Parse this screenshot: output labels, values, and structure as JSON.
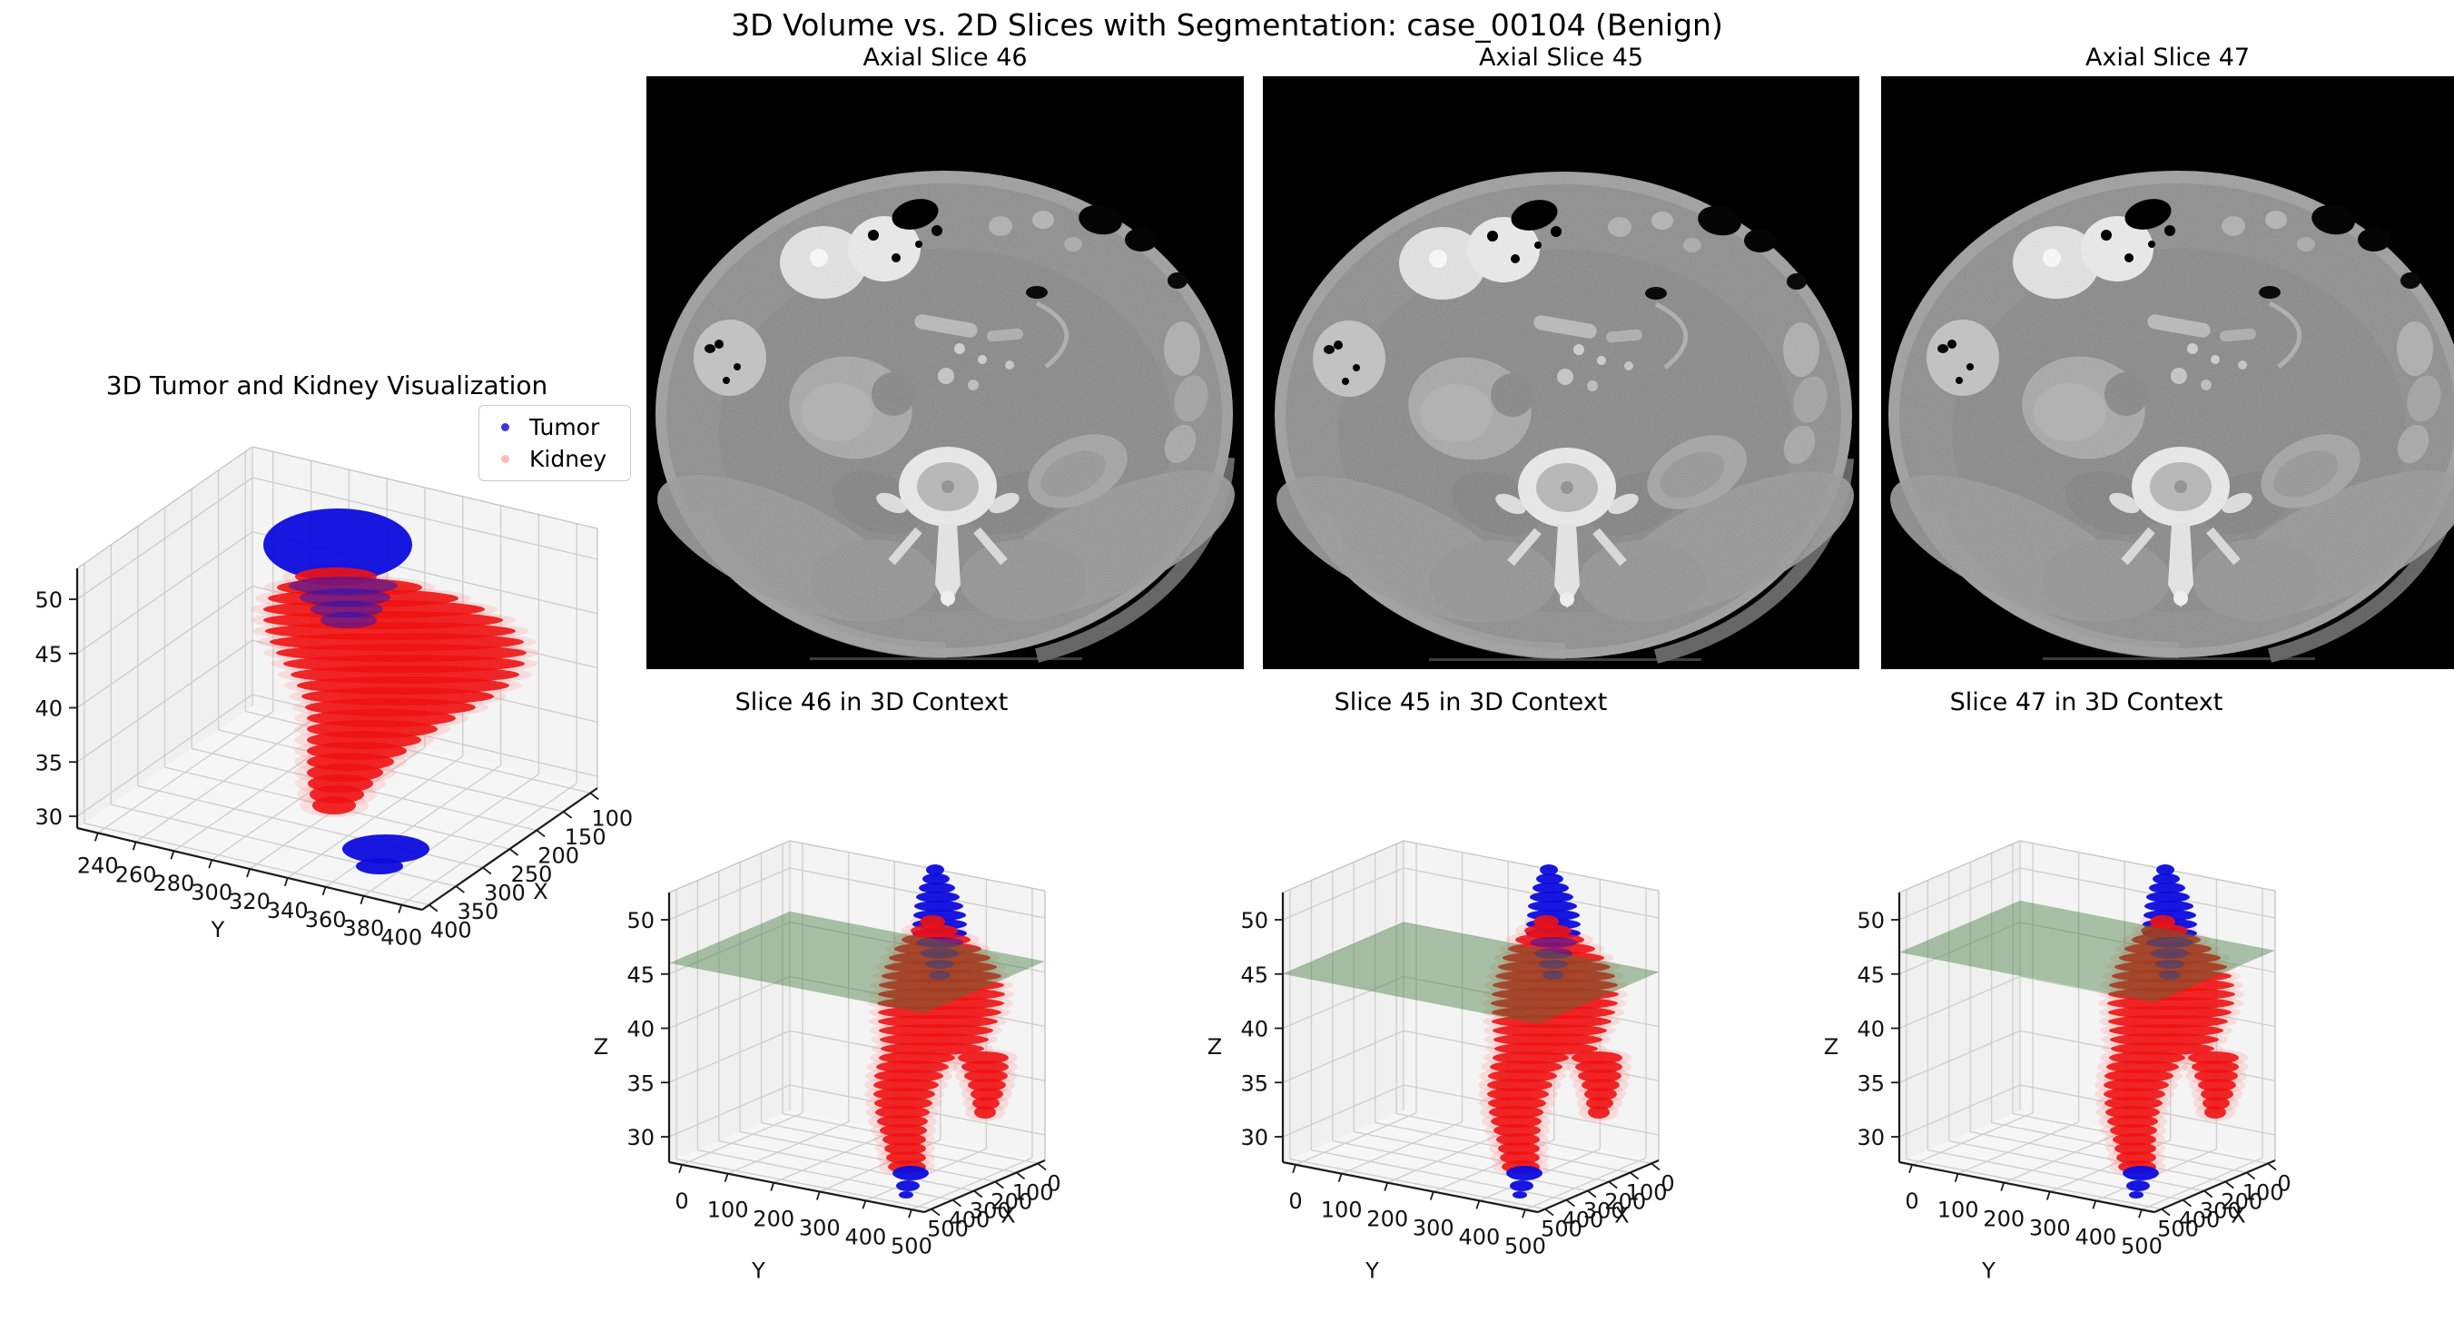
{
  "figure": {
    "suptitle": "3D Volume vs. 2D Slices with Segmentation: case_00104 (Benign)"
  },
  "main3d": {
    "title": "3D Tumor and Kidney Visualization",
    "legend": [
      {
        "label": "Tumor",
        "color": "#3a3ad9"
      },
      {
        "label": "Kidney",
        "color": "#ffb9b9"
      }
    ],
    "xlabel": "X",
    "ylabel": "Y",
    "zlabel": "",
    "x_ticks": [
      "100",
      "150",
      "200",
      "250",
      "300",
      "350",
      "400"
    ],
    "y_ticks": [
      "240",
      "260",
      "280",
      "300",
      "320",
      "340",
      "360",
      "380",
      "400"
    ],
    "z_ticks": [
      "50",
      "45",
      "40",
      "35",
      "30"
    ]
  },
  "axial": {
    "titles": [
      "Axial Slice 46",
      "Axial Slice 45",
      "Axial Slice 47"
    ]
  },
  "context": {
    "titles": [
      "Slice 46 in 3D Context",
      "Slice 45 in 3D Context",
      "Slice 47 in 3D Context"
    ],
    "xlabel": "X",
    "ylabel": "Y",
    "zlabel": "Z",
    "x_ticks": [
      "0",
      "100",
      "200",
      "300",
      "400",
      "500"
    ],
    "y_ticks": [
      "0",
      "100",
      "200",
      "300",
      "400",
      "500"
    ],
    "z_ticks": [
      "50",
      "45",
      "40",
      "35",
      "30"
    ],
    "slice_z": [
      46,
      45,
      47
    ]
  },
  "colors": {
    "tumor": "#0b0bdd",
    "kidney": "#ee1212",
    "kidney_fringe": "#ff8a8a",
    "plane": "rgb(60,120,55)",
    "plane_opacity": 0.42,
    "grid": "#cfcfcf",
    "pane_left": "#f0f0f0",
    "pane_right": "#f4f4f4",
    "pane_floor": "#f6f6f6",
    "spine": "#1a1a1a",
    "tick_text": "#111111"
  },
  "chart_data": [
    {
      "type": "scatter",
      "projection": "3d",
      "title": "3D Tumor and Kidney Visualization",
      "legend_entries": [
        "Tumor",
        "Kidney"
      ],
      "xlabel": "X",
      "ylabel": "Y",
      "x_ticks": [
        100,
        150,
        200,
        250,
        300,
        350,
        400
      ],
      "x_inverted": true,
      "y_ticks": [
        240,
        260,
        280,
        300,
        320,
        340,
        360,
        380,
        400
      ],
      "z_ticks": [
        30,
        35,
        40,
        45,
        50
      ],
      "series": [
        {
          "name": "Tumor",
          "color": "blue",
          "clusters": [
            {
              "approx_center": [
                225,
                320,
                50.5
              ],
              "approx_extent": {
                "x": [
                  180,
                  270
                ],
                "y": [
                  290,
                  360
                ],
                "z": [
                  48,
                  53
                ]
              }
            },
            {
              "approx_center": [
                300,
                330,
                29
              ],
              "approx_extent": {
                "x": [
                  270,
                  330
                ],
                "y": [
                  300,
                  360
                ],
                "z": [
                  28,
                  30
                ]
              }
            }
          ]
        },
        {
          "name": "Kidney",
          "color": "red",
          "alpha": 0.1,
          "clusters": [
            {
              "approx_center": [
                240,
                320,
                39
              ],
              "approx_extent": {
                "x": [
                  120,
                  340
                ],
                "y": [
                  250,
                  400
                ],
                "z": [
                  30,
                  48
                ]
              }
            }
          ]
        }
      ]
    },
    {
      "type": "scatter",
      "projection": "3d",
      "title": "Slice 46 in 3D Context",
      "plane_z": 46,
      "xlabel": "X",
      "ylabel": "Y",
      "zlabel": "Z",
      "x_ticks": [
        0,
        100,
        200,
        300,
        400,
        500
      ],
      "x_inverted": true,
      "y_ticks": [
        0,
        100,
        200,
        300,
        400,
        500
      ],
      "z_ticks": [
        30,
        35,
        40,
        45,
        50
      ],
      "series": [
        {
          "name": "Tumor",
          "color": "blue",
          "description": "cap above plane z 48-53 and small blob z 28-30"
        },
        {
          "name": "Kidney",
          "color": "red",
          "description": "vertical bifurcated mass z 30-48"
        }
      ]
    },
    {
      "type": "scatter",
      "projection": "3d",
      "title": "Slice 45 in 3D Context",
      "plane_z": 45,
      "xlabel": "X",
      "ylabel": "Y",
      "zlabel": "Z",
      "x_ticks": [
        0,
        100,
        200,
        300,
        400,
        500
      ],
      "x_inverted": true,
      "y_ticks": [
        0,
        100,
        200,
        300,
        400,
        500
      ],
      "z_ticks": [
        30,
        35,
        40,
        45,
        50
      ],
      "series": [
        {
          "name": "Tumor",
          "color": "blue"
        },
        {
          "name": "Kidney",
          "color": "red"
        }
      ]
    },
    {
      "type": "scatter",
      "projection": "3d",
      "title": "Slice 47 in 3D Context",
      "plane_z": 47,
      "xlabel": "X",
      "ylabel": "Y",
      "zlabel": "Z",
      "x_ticks": [
        0,
        100,
        200,
        300,
        400,
        500
      ],
      "x_inverted": true,
      "y_ticks": [
        0,
        100,
        200,
        300,
        400,
        500
      ],
      "z_ticks": [
        30,
        35,
        40,
        45,
        50
      ],
      "series": [
        {
          "name": "Tumor",
          "color": "blue"
        },
        {
          "name": "Kidney",
          "color": "red"
        }
      ]
    },
    {
      "type": "image",
      "title": "Axial Slice 46",
      "description": "grayscale abdominal CT axial slice"
    },
    {
      "type": "image",
      "title": "Axial Slice 45",
      "description": "grayscale abdominal CT axial slice"
    },
    {
      "type": "image",
      "title": "Axial Slice 47",
      "description": "grayscale abdominal CT axial slice"
    }
  ],
  "render": {
    "main": {
      "red": [
        [
          205,
          360,
          45
        ],
        [
          217,
          375,
          80
        ],
        [
          229,
          390,
          105
        ],
        [
          241,
          402,
          122
        ],
        [
          253,
          412,
          132
        ],
        [
          265,
          420,
          138
        ],
        [
          277,
          427,
          140
        ],
        [
          289,
          432,
          138
        ],
        [
          301,
          435,
          133
        ],
        [
          313,
          436,
          126
        ],
        [
          325,
          434,
          117
        ],
        [
          337,
          428,
          106
        ],
        [
          349,
          420,
          94
        ],
        [
          361,
          410,
          82
        ],
        [
          373,
          400,
          72
        ],
        [
          385,
          391,
          63
        ],
        [
          397,
          383,
          55
        ],
        [
          409,
          376,
          48
        ],
        [
          421,
          370,
          42
        ],
        [
          433,
          365,
          36
        ],
        [
          445,
          361,
          30
        ],
        [
          457,
          358,
          24
        ]
      ],
      "blue_top": [
        [
          170,
          362,
          82,
          40
        ]
      ],
      "rings": [
        [
          215,
          368,
          60,
          10
        ],
        [
          228,
          370,
          50,
          10
        ],
        [
          241,
          372,
          40,
          9
        ],
        [
          253,
          374,
          31,
          9
        ]
      ],
      "blue_bottom": [
        [
          505,
          415,
          48,
          16
        ],
        [
          524,
          408,
          26,
          9
        ]
      ]
    },
    "ctx": {
      "red": [
        [
          115,
          387,
          14
        ],
        [
          125,
          389,
          26
        ],
        [
          135,
          391,
          38
        ],
        [
          145,
          393,
          48
        ],
        [
          155,
          395,
          56
        ],
        [
          165,
          396,
          62
        ],
        [
          175,
          397,
          66
        ],
        [
          185,
          397,
          69
        ],
        [
          195,
          397,
          70
        ],
        [
          205,
          396,
          70
        ],
        [
          215,
          395,
          68
        ],
        [
          225,
          393,
          66
        ],
        [
          235,
          391,
          63
        ],
        [
          245,
          389,
          60
        ],
        [
          255,
          387,
          57
        ],
        [
          265,
          370,
          42
        ],
        [
          275,
          365,
          40
        ],
        [
          285,
          361,
          38
        ],
        [
          295,
          358,
          36
        ],
        [
          305,
          356,
          34
        ],
        [
          315,
          355,
          32
        ],
        [
          325,
          354,
          30
        ],
        [
          335,
          354,
          28
        ],
        [
          345,
          355,
          26
        ],
        [
          355,
          356,
          24
        ],
        [
          365,
          357,
          23
        ],
        [
          375,
          358,
          22
        ],
        [
          385,
          359,
          21
        ],
        [
          265,
          443,
          28
        ],
        [
          275,
          445,
          26
        ],
        [
          285,
          446,
          24
        ],
        [
          295,
          447,
          21
        ],
        [
          305,
          447,
          18
        ],
        [
          315,
          446,
          15
        ],
        [
          325,
          445,
          12
        ]
      ],
      "blue_top": [
        [
          58,
          390,
          10
        ],
        [
          68,
          391,
          15
        ],
        [
          78,
          392,
          20
        ],
        [
          88,
          393,
          24
        ],
        [
          98,
          394,
          27
        ],
        [
          108,
          395,
          29
        ],
        [
          118,
          395,
          30
        ],
        [
          128,
          395,
          30
        ]
      ],
      "rings": [
        [
          138,
          395,
          26,
          6
        ],
        [
          150,
          395,
          21,
          6
        ],
        [
          162,
          395,
          16,
          5
        ],
        [
          174,
          395,
          12,
          5
        ]
      ],
      "blue_bottom": [
        [
          392,
          363,
          20,
          8
        ],
        [
          406,
          360,
          13,
          6
        ],
        [
          416,
          358,
          8,
          4
        ]
      ]
    }
  }
}
